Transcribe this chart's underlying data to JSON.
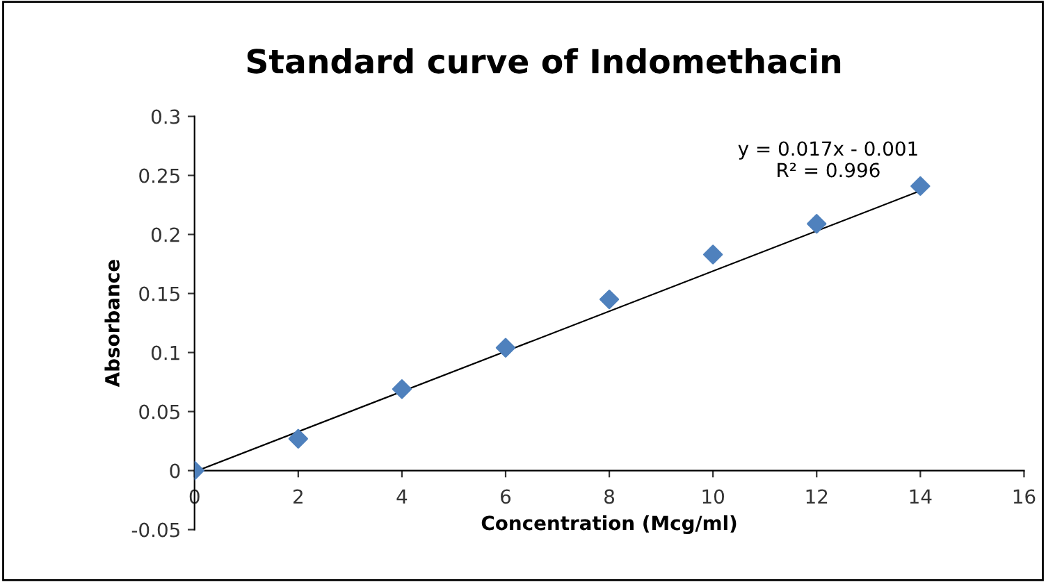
{
  "chart_data": {
    "type": "scatter",
    "title": "Standard curve of Indomethacin",
    "xlabel": "Concentration (Mcg/ml)",
    "ylabel": "Absorbance",
    "xlim": [
      0,
      16
    ],
    "xticks": [
      0,
      2,
      4,
      6,
      8,
      10,
      12,
      14,
      16
    ],
    "ylim": [
      -0.05,
      0.3
    ],
    "yticks": [
      -0.05,
      0,
      0.05,
      0.1,
      0.15,
      0.2,
      0.25,
      0.3
    ],
    "grid": false,
    "legend": false,
    "series": [
      {
        "marker": "diamond",
        "color": "#4f81bd",
        "x": [
          0,
          2,
          4,
          6,
          8,
          10,
          12,
          14
        ],
        "values": [
          0,
          0.027,
          0.069,
          0.104,
          0.145,
          0.183,
          0.209,
          0.241
        ]
      },
      {
        "type": "line",
        "marker": "none",
        "color": "#000000",
        "line_style": "solid",
        "x": [
          0,
          14
        ],
        "values": [
          -0.001,
          0.237
        ]
      }
    ],
    "annotations": [
      "y = 0.017x - 0.001",
      "R² = 0.996"
    ]
  }
}
